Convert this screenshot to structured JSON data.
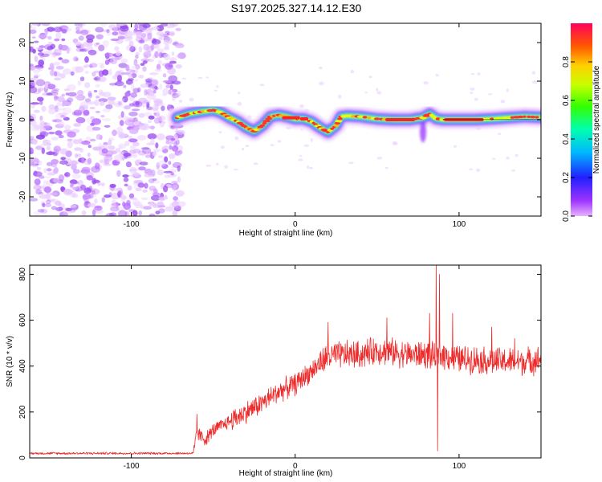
{
  "title": "S197.2025.327.14.12.E30",
  "colors": {
    "snr_line": "#ee2b2b",
    "axis": "#000000",
    "noise": "#8a3cf0"
  },
  "chart_data": [
    {
      "type": "heatmap",
      "xlabel": "Height of straight line (km)",
      "ylabel": "Frequency (Hz)",
      "xlim": [
        -162,
        150
      ],
      "ylim": [
        -25,
        25
      ],
      "x_ticks": [
        -100,
        0,
        100
      ],
      "y_ticks": [
        -20,
        -10,
        0,
        10,
        20
      ],
      "x_tick_labels": [
        "-100",
        "0",
        "100"
      ],
      "y_tick_labels": [
        "-20",
        "-10",
        "0",
        "10",
        "20"
      ],
      "noise_region_x": [
        -162,
        -72
      ],
      "ridge": [
        [
          -72,
          0.5
        ],
        [
          -65,
          1.5
        ],
        [
          -58,
          2.0
        ],
        [
          -50,
          2.5
        ],
        [
          -45,
          1.8
        ],
        [
          -40,
          0.5
        ],
        [
          -35,
          -0.5
        ],
        [
          -30,
          -2.0
        ],
        [
          -25,
          -3.0
        ],
        [
          -20,
          -1.5
        ],
        [
          -15,
          0.8
        ],
        [
          -10,
          1.2
        ],
        [
          -5,
          0.8
        ],
        [
          0,
          0.2
        ],
        [
          5,
          0.2
        ],
        [
          10,
          -0.5
        ],
        [
          15,
          -2.0
        ],
        [
          20,
          -3.2
        ],
        [
          25,
          -1.5
        ],
        [
          28,
          0.8
        ],
        [
          32,
          1.0
        ],
        [
          40,
          0.8
        ],
        [
          50,
          0.2
        ],
        [
          60,
          0.0
        ],
        [
          70,
          0.0
        ],
        [
          78,
          0.5
        ],
        [
          82,
          1.5
        ],
        [
          86,
          0.3
        ],
        [
          90,
          0.0
        ],
        [
          100,
          0.0
        ],
        [
          110,
          0.0
        ],
        [
          120,
          0.2
        ],
        [
          130,
          0.5
        ],
        [
          140,
          0.8
        ],
        [
          150,
          0.6
        ]
      ],
      "colorbar": {
        "label": "Normalized spectral amplitude",
        "range": [
          0.0,
          1.0
        ],
        "ticks": [
          0.0,
          0.2,
          0.4,
          0.6,
          0.8
        ],
        "tick_labels": [
          "0.0",
          "0.2",
          "0.4",
          "0.6",
          "0.8"
        ]
      }
    },
    {
      "type": "line",
      "xlabel": "Height of straight line (km)",
      "ylabel": "SNR (10 * v/v)",
      "xlim": [
        -162,
        150
      ],
      "ylim": [
        0,
        840
      ],
      "x_ticks": [
        -100,
        0,
        100
      ],
      "y_ticks": [
        0,
        200,
        400,
        600,
        800
      ],
      "x_tick_labels": [
        "-100",
        "0",
        "100"
      ],
      "y_tick_labels": [
        "0",
        "200",
        "400",
        "600",
        "800"
      ],
      "series": [
        {
          "name": "SNR",
          "trend": [
            [
              -162,
              20
            ],
            [
              -100,
              20
            ],
            [
              -62,
              20
            ],
            [
              -60,
              110
            ],
            [
              -55,
              80
            ],
            [
              -50,
              120
            ],
            [
              -40,
              160
            ],
            [
              -30,
              200
            ],
            [
              -20,
              240
            ],
            [
              -10,
              290
            ],
            [
              0,
              320
            ],
            [
              10,
              380
            ],
            [
              20,
              440
            ],
            [
              30,
              450
            ],
            [
              40,
              450
            ],
            [
              50,
              470
            ],
            [
              60,
              460
            ],
            [
              70,
              450
            ],
            [
              80,
              450
            ],
            [
              85,
              440
            ],
            [
              90,
              450
            ],
            [
              100,
              430
            ],
            [
              110,
              430
            ],
            [
              120,
              420
            ],
            [
              130,
              420
            ],
            [
              140,
              420
            ],
            [
              150,
              430
            ]
          ],
          "spikes": [
            [
              -60,
              190
            ],
            [
              20,
              590
            ],
            [
              56,
              610
            ],
            [
              82,
              630
            ],
            [
              86,
              840
            ],
            [
              87,
              30
            ],
            [
              88,
              800
            ],
            [
              96,
              630
            ],
            [
              120,
              570
            ],
            [
              134,
              520
            ]
          ]
        }
      ]
    }
  ]
}
